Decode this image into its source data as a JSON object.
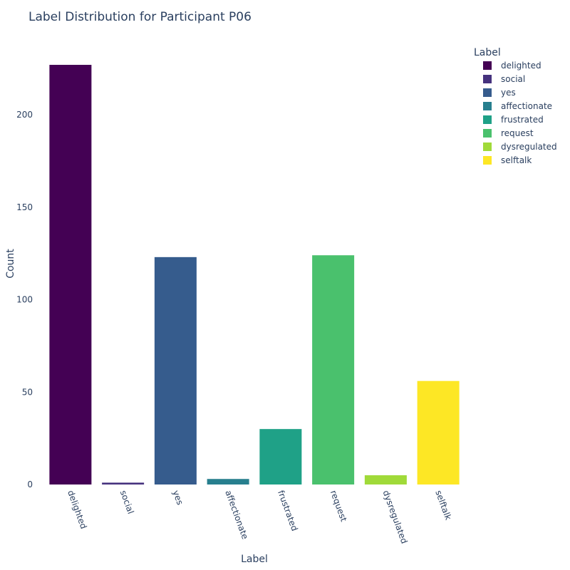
{
  "chart_data": {
    "type": "bar",
    "title": "Label Distribution for Participant P06",
    "xlabel": "Label",
    "ylabel": "Count",
    "categories": [
      "delighted",
      "social",
      "yes",
      "affectionate",
      "frustrated",
      "request",
      "dysregulated",
      "selftalk"
    ],
    "values": [
      227,
      1,
      123,
      3,
      30,
      124,
      5,
      56
    ],
    "colors": [
      "#440154",
      "#46327e",
      "#365c8d",
      "#277f8e",
      "#1fa187",
      "#4ac16d",
      "#a0da39",
      "#fde725"
    ],
    "ylim": [
      0,
      227
    ],
    "yticks": [
      0,
      50,
      100,
      150,
      200
    ],
    "legend": {
      "title": "Label",
      "position": "top-right",
      "entries": [
        "delighted",
        "social",
        "yes",
        "affectionate",
        "frustrated",
        "request",
        "dysregulated",
        "selftalk"
      ]
    },
    "grid": false
  }
}
